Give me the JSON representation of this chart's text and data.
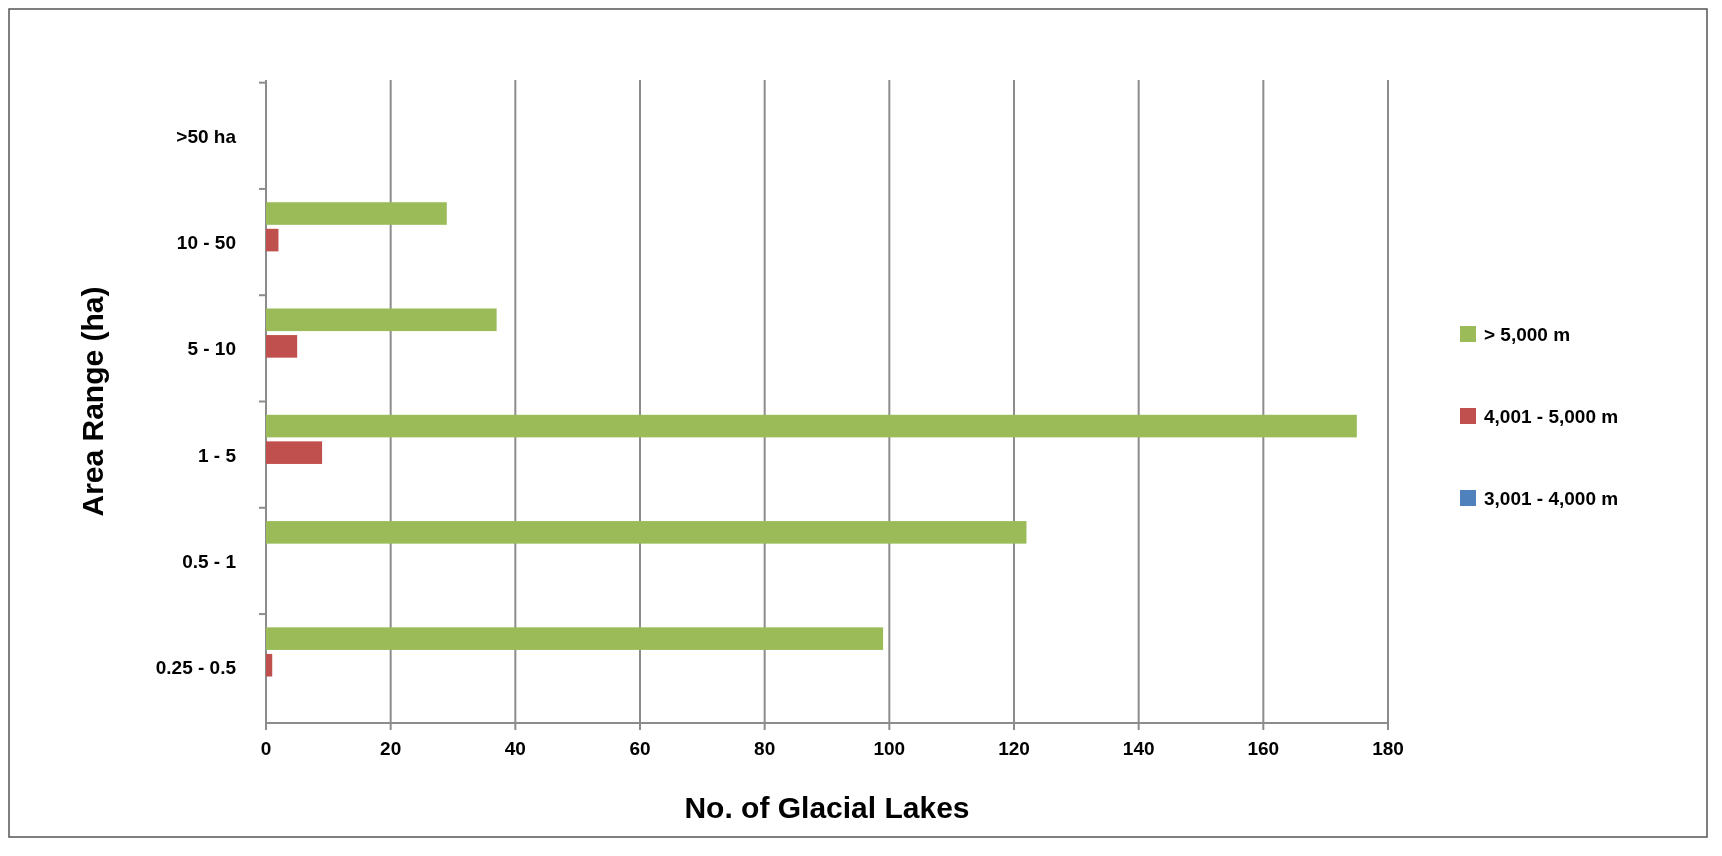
{
  "chart_data": {
    "type": "bar",
    "orientation": "horizontal",
    "xlabel": "No. of Glacial Lakes",
    "ylabel": "Area Range (ha)",
    "categories": [
      ">50 ha",
      "10 - 50",
      "5 - 10",
      "1 - 5",
      "0.5 - 1",
      "0.25 - 0.5"
    ],
    "series": [
      {
        "name": "> 5,000 m",
        "color": "#9bbb59",
        "values": [
          0,
          29,
          37,
          175,
          122,
          99
        ]
      },
      {
        "name": "4,001 - 5,000 m",
        "color": "#c0504d",
        "values": [
          0,
          2,
          5,
          9,
          0,
          1
        ]
      },
      {
        "name": "3,001 - 4,000 m",
        "color": "#4f81bd",
        "values": [
          0,
          0,
          0,
          0,
          0,
          0
        ]
      }
    ],
    "xlim": [
      0,
      180
    ],
    "xticks": [
      0,
      20,
      40,
      60,
      80,
      100,
      120,
      140,
      160,
      180
    ],
    "grid": "x",
    "legend": "right"
  }
}
